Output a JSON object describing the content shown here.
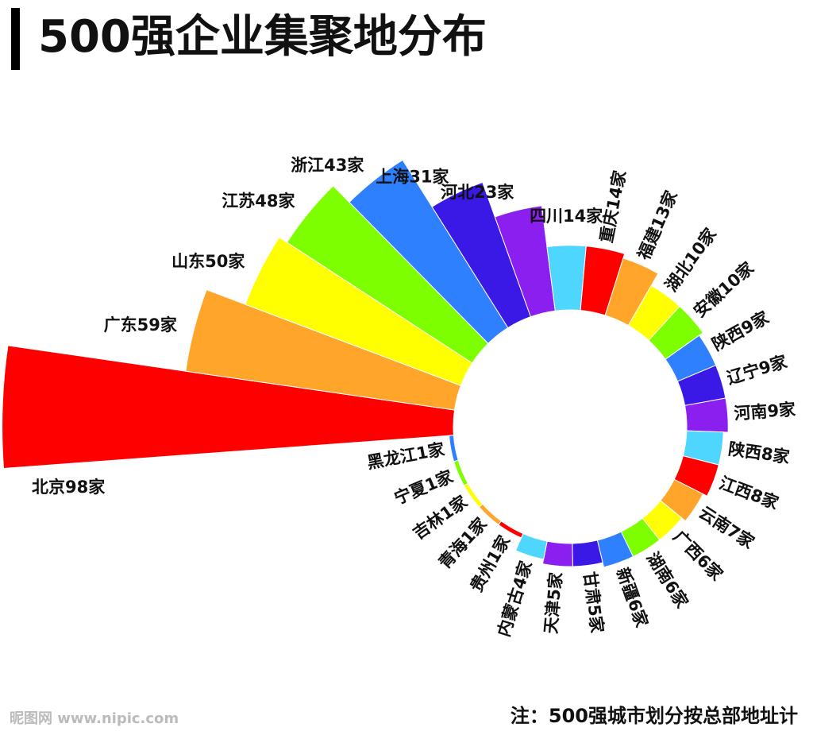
{
  "chart_data": {
    "type": "radial-bar",
    "title": "500强企业集聚地分布",
    "values": [
      98,
      59,
      50,
      48,
      43,
      31,
      23,
      14,
      14,
      13,
      10,
      10,
      9,
      9,
      9,
      8,
      8,
      7,
      6,
      6,
      6,
      5,
      5,
      4,
      1,
      1,
      1,
      1,
      1
    ],
    "value_labels": [
      "北京98家",
      "广东59家",
      "山东50家",
      "江苏48家",
      "浙江43家",
      "上海31家",
      "河北23家",
      "四川14家",
      "重庆14家",
      "福建13家",
      "湖北10家",
      "安徽10家",
      "陕西9家",
      "辽宁9家",
      "河南9家",
      "陕西8家",
      "江西8家",
      "云南7家",
      "广西6家",
      "湖南6家",
      "新疆6家",
      "甘肃5家",
      "天津5家",
      "内蒙古4家",
      "贵州1家",
      "青海1家",
      "吉林1家",
      "宁夏1家",
      "黑龙江1家"
    ],
    "colors": [
      "#ff0000",
      "#ffa52a",
      "#ffff00",
      "#7dff00",
      "#2e80ff",
      "#3a18e6",
      "#8a1ff0",
      "#4fd6ff",
      "#ff0000",
      "#ffa52a",
      "#ffff00",
      "#7dff00",
      "#2e80ff",
      "#3a18e6",
      "#8a1ff0",
      "#4fd6ff",
      "#ff0000",
      "#ffa52a",
      "#ffff00",
      "#7dff00",
      "#2e80ff",
      "#3a18e6",
      "#8a1ff0",
      "#4fd6ff",
      "#ff0000",
      "#ffa52a",
      "#ffff00",
      "#7dff00",
      "#2e80ff"
    ],
    "note": "注：500强城市划分按总部地址计",
    "watermark": "昵图网 www.nipic.com"
  }
}
